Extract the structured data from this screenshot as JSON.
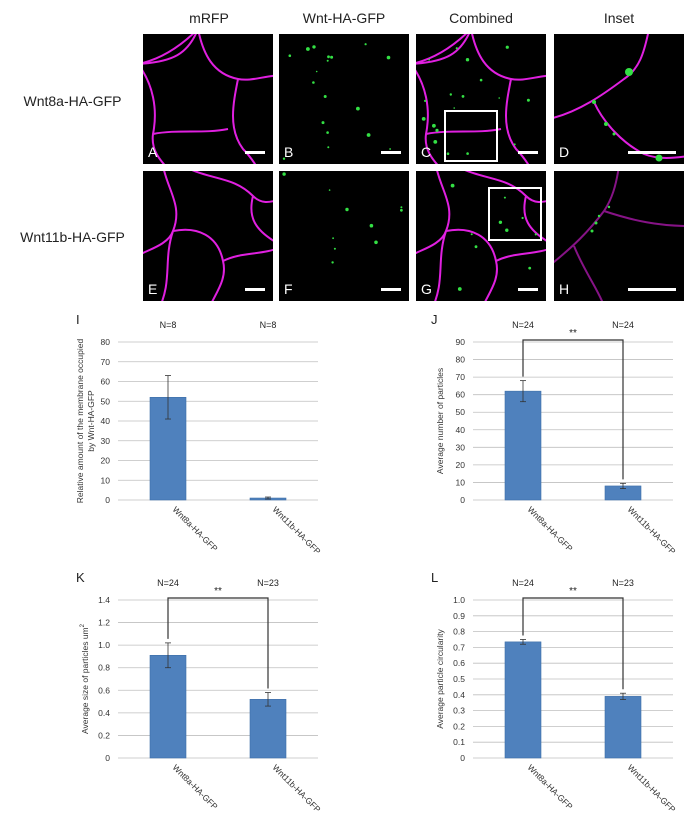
{
  "figure": {
    "column_headers": [
      "mRFP",
      "Wnt-HA-GFP",
      "Combined",
      "Inset"
    ],
    "row_labels": [
      "Wnt8a-HA-GFP",
      "Wnt11b-HA-GFP"
    ],
    "panel_labels": [
      "A",
      "B",
      "C",
      "D",
      "E",
      "F",
      "G",
      "H"
    ],
    "colors": {
      "membrane": "#e020e0",
      "particles": "#33e044",
      "bar": "#4f81bd",
      "bar_edge": "#3d6ea8"
    }
  },
  "chart_data": [
    {
      "type": "bar",
      "panel": "I",
      "categories": [
        "Wnt8a-HA-GFP",
        "Wnt11b-HA-GFP"
      ],
      "values": [
        52,
        1
      ],
      "errors": [
        11,
        0.5
      ],
      "n_labels": [
        "N=8",
        "N=8"
      ],
      "ylabel": "Relative amount of the membrane occupied by Wnt-HA-GFP",
      "ylim": [
        0,
        80
      ],
      "yticks": [
        "0",
        "10",
        "20",
        "30",
        "40",
        "50",
        "60",
        "70",
        "80"
      ],
      "significance": "",
      "grid": true
    },
    {
      "type": "bar",
      "panel": "J",
      "categories": [
        "Wnt8a-HA-GFP",
        "Wnt11b-HA-GFP"
      ],
      "values": [
        62,
        8
      ],
      "errors": [
        6,
        1.5
      ],
      "n_labels": [
        "N=24",
        "N=24"
      ],
      "ylabel": "Average number of particles",
      "ylim": [
        0,
        90
      ],
      "yticks": [
        "0",
        "10",
        "20",
        "30",
        "40",
        "50",
        "60",
        "70",
        "80",
        "90"
      ],
      "significance": "**",
      "grid": true
    },
    {
      "type": "bar",
      "panel": "K",
      "categories": [
        "Wnt8a-HA-GFP",
        "Wnt11b-HA-GFP"
      ],
      "values": [
        0.91,
        0.52
      ],
      "errors": [
        0.11,
        0.06
      ],
      "n_labels": [
        "N=24",
        "N=23"
      ],
      "ylabel": "Average size of particles um",
      "ylabel_sup": "2",
      "ylim": [
        0,
        1.4
      ],
      "yticks": [
        "0",
        "0.2",
        "0.4",
        "0.6",
        "0.8",
        "1.0",
        "1.2",
        "1.4"
      ],
      "significance": "**",
      "grid": true
    },
    {
      "type": "bar",
      "panel": "L",
      "categories": [
        "Wnt8a-HA-GFP",
        "Wnt11b-HA-GFP"
      ],
      "values": [
        0.735,
        0.39
      ],
      "errors": [
        0.015,
        0.02
      ],
      "n_labels": [
        "N=24",
        "N=23"
      ],
      "ylabel": "Average particle circularity",
      "ylim": [
        0,
        1.0
      ],
      "yticks": [
        "0",
        "0.1",
        "0.2",
        "0.3",
        "0.4",
        "0.5",
        "0.6",
        "0.7",
        "0.8",
        "0.9",
        "1.0"
      ],
      "significance": "**",
      "grid": true
    }
  ]
}
